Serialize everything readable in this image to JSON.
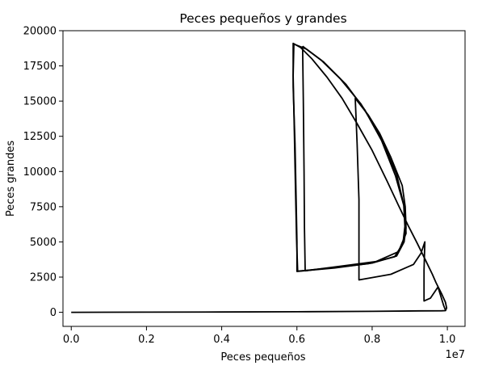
{
  "chart_data": {
    "type": "line",
    "title": "Peces pequeños y grandes",
    "xlabel": "Peces pequeños",
    "ylabel": "Peces grandes",
    "x_offset_label": "1e7",
    "xlim": [
      -220000,
      10470000
    ],
    "ylim": [
      -1000,
      20000
    ],
    "x_ticks": [
      0,
      2000000,
      4000000,
      6000000,
      8000000,
      10000000
    ],
    "x_tick_labels": [
      "0.0",
      "0.2",
      "0.4",
      "0.6",
      "0.8",
      "1.0"
    ],
    "y_ticks": [
      0,
      2500,
      5000,
      7500,
      10000,
      12500,
      15000,
      17500,
      20000
    ],
    "y_tick_labels": [
      "0",
      "2500",
      "5000",
      "7500",
      "10000",
      "12500",
      "15000",
      "17500",
      "20000"
    ],
    "grid": false,
    "line_color": "#000000",
    "series": [
      {
        "points": [
          [
            0,
            0
          ],
          [
            2000000,
            10
          ],
          [
            4000000,
            20
          ],
          [
            6000000,
            40
          ],
          [
            8000000,
            70
          ],
          [
            9300000,
            100
          ],
          [
            9850000,
            110
          ],
          [
            9950000,
            120
          ],
          [
            9980000,
            300
          ],
          [
            9950000,
            700
          ],
          [
            9850000,
            1300
          ],
          [
            9700000,
            2100
          ],
          [
            9600000,
            2700
          ],
          [
            9400000,
            3800
          ],
          [
            9200000,
            4900
          ],
          [
            8950000,
            6200
          ],
          [
            8700000,
            7600
          ],
          [
            8400000,
            9300
          ],
          [
            8000000,
            11500
          ],
          [
            7600000,
            13400
          ],
          [
            7200000,
            15200
          ],
          [
            6800000,
            16700
          ],
          [
            6400000,
            18000
          ],
          [
            6100000,
            18800
          ],
          [
            5900000,
            19100
          ],
          [
            5900000,
            16000
          ],
          [
            5950000,
            12000
          ],
          [
            5980000,
            8000
          ],
          [
            6000000,
            5000
          ],
          [
            6000000,
            2900
          ],
          [
            7000000,
            3150
          ],
          [
            8000000,
            3500
          ],
          [
            8650000,
            4000
          ],
          [
            8850000,
            5000
          ],
          [
            8900000,
            6000
          ],
          [
            8880000,
            7500
          ],
          [
            8800000,
            9000
          ],
          [
            8500000,
            11000
          ],
          [
            8200000,
            12700
          ],
          [
            7900000,
            14000
          ],
          [
            7550000,
            15200
          ],
          [
            7600000,
            12000
          ],
          [
            7650000,
            8000
          ],
          [
            7650000,
            2300
          ],
          [
            8500000,
            2700
          ],
          [
            9100000,
            3400
          ],
          [
            9300000,
            4200
          ],
          [
            9400000,
            5000
          ],
          [
            9380000,
            3000
          ],
          [
            9380000,
            800
          ],
          [
            9550000,
            1000
          ],
          [
            9750000,
            1800
          ],
          [
            9900000,
            500
          ],
          [
            9950000,
            150
          ]
        ]
      },
      {
        "points": [
          [
            6150000,
            18900
          ],
          [
            6170000,
            15000
          ],
          [
            6190000,
            10000
          ],
          [
            6200000,
            6000
          ],
          [
            6220000,
            2950
          ],
          [
            7100000,
            3250
          ],
          [
            8100000,
            3600
          ],
          [
            8700000,
            4300
          ],
          [
            8900000,
            5600
          ],
          [
            8880000,
            7200
          ],
          [
            8650000,
            9800
          ],
          [
            8200000,
            12600
          ],
          [
            7700000,
            14800
          ],
          [
            7150000,
            16600
          ],
          [
            6650000,
            17900
          ],
          [
            6150000,
            18900
          ]
        ]
      },
      {
        "points": [
          [
            5920000,
            19050
          ],
          [
            5900000,
            16800
          ],
          [
            5930000,
            13000
          ],
          [
            5960000,
            9000
          ],
          [
            5990000,
            5200
          ],
          [
            6020000,
            2920
          ],
          [
            6900000,
            3150
          ],
          [
            7900000,
            3450
          ],
          [
            8600000,
            3950
          ],
          [
            8820000,
            4900
          ],
          [
            8870000,
            6100
          ],
          [
            8840000,
            7600
          ],
          [
            8620000,
            9700
          ],
          [
            8250000,
            12200
          ],
          [
            7800000,
            14400
          ],
          [
            7300000,
            16200
          ],
          [
            6700000,
            17800
          ],
          [
            6250000,
            18700
          ],
          [
            5920000,
            19050
          ]
        ]
      }
    ]
  }
}
